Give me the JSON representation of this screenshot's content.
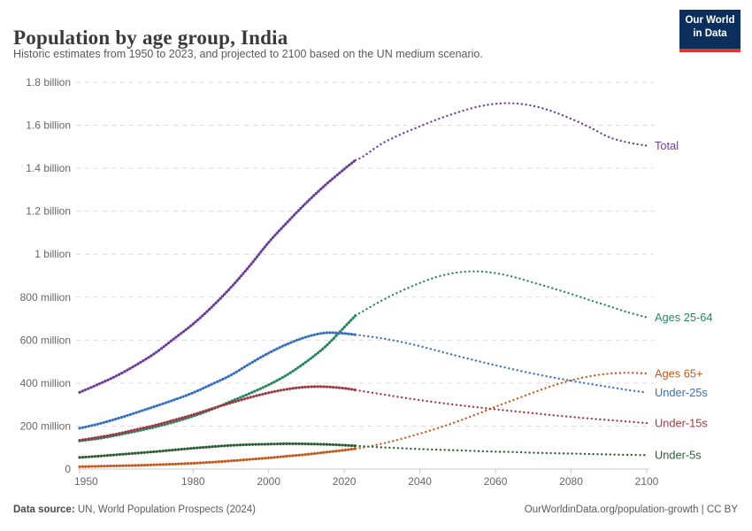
{
  "header": {
    "title": "Population by age group, India",
    "subtitle": "Historic estimates from 1950 to 2023, and projected to 2100 based on the UN medium scenario."
  },
  "logo": {
    "line1": "Our World",
    "line2": "in Data",
    "bg": "#0b2e5c",
    "bar": "#dc3a2f"
  },
  "footer": {
    "source_label": "Data source:",
    "source_text": " UN, World Population Prospects (2024)",
    "link_text": "OurWorldinData.org/population-growth | CC BY"
  },
  "chart_data": {
    "type": "line",
    "title": "Population by age group, India",
    "xlabel": "Year",
    "ylabel": "Population",
    "unit_millions": true,
    "xlim": [
      1950,
      2100
    ],
    "ylim_millions": [
      0,
      1800
    ],
    "grid": true,
    "projection_start_year": 2023,
    "x_ticks": [
      1950,
      1980,
      2000,
      2020,
      2040,
      2060,
      2080,
      2100
    ],
    "y_ticks": [
      {
        "v": 0,
        "label": "0"
      },
      {
        "v": 200,
        "label": "200 million"
      },
      {
        "v": 400,
        "label": "400 million"
      },
      {
        "v": 600,
        "label": "600 million"
      },
      {
        "v": 800,
        "label": "800 million"
      },
      {
        "v": 1000,
        "label": "1 billion"
      },
      {
        "v": 1200,
        "label": "1.2 billion"
      },
      {
        "v": 1400,
        "label": "1.4 billion"
      },
      {
        "v": 1600,
        "label": "1.6 billion"
      },
      {
        "v": 1800,
        "label": "1.8 billion"
      }
    ],
    "colors": {
      "grid": "#dcdcdc",
      "axis": "#c8c8c8",
      "tick_text": "#666666"
    },
    "series": [
      {
        "name": "Total",
        "color": "#6d3e98",
        "historic": [
          [
            1950,
            357
          ],
          [
            1955,
            395
          ],
          [
            1960,
            436
          ],
          [
            1965,
            485
          ],
          [
            1970,
            540
          ],
          [
            1975,
            607
          ],
          [
            1980,
            675
          ],
          [
            1985,
            755
          ],
          [
            1990,
            845
          ],
          [
            1995,
            946
          ],
          [
            2000,
            1055
          ],
          [
            2005,
            1150
          ],
          [
            2010,
            1240
          ],
          [
            2015,
            1322
          ],
          [
            2020,
            1396
          ],
          [
            2023,
            1438
          ]
        ],
        "projected": [
          [
            2023,
            1438
          ],
          [
            2025,
            1455
          ],
          [
            2030,
            1515
          ],
          [
            2035,
            1558
          ],
          [
            2040,
            1595
          ],
          [
            2045,
            1630
          ],
          [
            2050,
            1660
          ],
          [
            2055,
            1685
          ],
          [
            2060,
            1700
          ],
          [
            2065,
            1702
          ],
          [
            2070,
            1690
          ],
          [
            2075,
            1665
          ],
          [
            2080,
            1630
          ],
          [
            2085,
            1590
          ],
          [
            2090,
            1545
          ],
          [
            2095,
            1520
          ],
          [
            2100,
            1505
          ]
        ]
      },
      {
        "name": "Ages 25-64",
        "color": "#2c8465",
        "historic": [
          [
            1950,
            131
          ],
          [
            1955,
            142
          ],
          [
            1960,
            158
          ],
          [
            1965,
            176
          ],
          [
            1970,
            196
          ],
          [
            1975,
            219
          ],
          [
            1980,
            246
          ],
          [
            1985,
            278
          ],
          [
            1990,
            315
          ],
          [
            1995,
            352
          ],
          [
            2000,
            392
          ],
          [
            2005,
            440
          ],
          [
            2010,
            500
          ],
          [
            2015,
            570
          ],
          [
            2020,
            660
          ],
          [
            2023,
            715
          ]
        ],
        "projected": [
          [
            2023,
            715
          ],
          [
            2025,
            735
          ],
          [
            2030,
            785
          ],
          [
            2035,
            828
          ],
          [
            2040,
            866
          ],
          [
            2045,
            897
          ],
          [
            2050,
            915
          ],
          [
            2055,
            920
          ],
          [
            2060,
            912
          ],
          [
            2065,
            893
          ],
          [
            2070,
            868
          ],
          [
            2075,
            842
          ],
          [
            2080,
            815
          ],
          [
            2085,
            786
          ],
          [
            2090,
            758
          ],
          [
            2095,
            730
          ],
          [
            2100,
            706
          ]
        ]
      },
      {
        "name": "Ages 65+",
        "color": "#c45a1d",
        "historic": [
          [
            1950,
            11
          ],
          [
            1955,
            13
          ],
          [
            1960,
            15
          ],
          [
            1965,
            17
          ],
          [
            1970,
            20
          ],
          [
            1975,
            23
          ],
          [
            1980,
            27
          ],
          [
            1985,
            32
          ],
          [
            1990,
            38
          ],
          [
            1995,
            45
          ],
          [
            2000,
            52
          ],
          [
            2005,
            60
          ],
          [
            2010,
            68
          ],
          [
            2015,
            78
          ],
          [
            2020,
            88
          ],
          [
            2023,
            95
          ]
        ],
        "projected": [
          [
            2023,
            95
          ],
          [
            2025,
            100
          ],
          [
            2030,
            118
          ],
          [
            2035,
            140
          ],
          [
            2040,
            165
          ],
          [
            2045,
            192
          ],
          [
            2050,
            222
          ],
          [
            2055,
            255
          ],
          [
            2060,
            290
          ],
          [
            2065,
            323
          ],
          [
            2070,
            356
          ],
          [
            2075,
            387
          ],
          [
            2080,
            413
          ],
          [
            2085,
            432
          ],
          [
            2090,
            444
          ],
          [
            2095,
            448
          ],
          [
            2100,
            445
          ]
        ]
      },
      {
        "name": "Under-25s",
        "color": "#3670bf",
        "historic": [
          [
            1950,
            190
          ],
          [
            1955,
            210
          ],
          [
            1960,
            235
          ],
          [
            1965,
            263
          ],
          [
            1970,
            292
          ],
          [
            1975,
            322
          ],
          [
            1980,
            355
          ],
          [
            1985,
            395
          ],
          [
            1990,
            437
          ],
          [
            1995,
            490
          ],
          [
            2000,
            540
          ],
          [
            2005,
            582
          ],
          [
            2010,
            615
          ],
          [
            2015,
            634
          ],
          [
            2020,
            631
          ],
          [
            2023,
            625
          ]
        ],
        "projected": [
          [
            2023,
            625
          ],
          [
            2025,
            621
          ],
          [
            2030,
            608
          ],
          [
            2035,
            592
          ],
          [
            2040,
            572
          ],
          [
            2045,
            549
          ],
          [
            2050,
            526
          ],
          [
            2055,
            504
          ],
          [
            2060,
            483
          ],
          [
            2065,
            463
          ],
          [
            2070,
            444
          ],
          [
            2075,
            427
          ],
          [
            2080,
            411
          ],
          [
            2085,
            396
          ],
          [
            2090,
            382
          ],
          [
            2095,
            368
          ],
          [
            2100,
            356
          ]
        ]
      },
      {
        "name": "Under-15s",
        "color": "#9c3b42",
        "historic": [
          [
            1950,
            134
          ],
          [
            1955,
            148
          ],
          [
            1960,
            164
          ],
          [
            1965,
            184
          ],
          [
            1970,
            204
          ],
          [
            1975,
            228
          ],
          [
            1980,
            253
          ],
          [
            1985,
            281
          ],
          [
            1990,
            308
          ],
          [
            1995,
            333
          ],
          [
            2000,
            355
          ],
          [
            2005,
            372
          ],
          [
            2010,
            382
          ],
          [
            2015,
            383
          ],
          [
            2020,
            376
          ],
          [
            2023,
            368
          ]
        ],
        "projected": [
          [
            2023,
            368
          ],
          [
            2025,
            362
          ],
          [
            2030,
            348
          ],
          [
            2035,
            334
          ],
          [
            2040,
            321
          ],
          [
            2045,
            309
          ],
          [
            2050,
            298
          ],
          [
            2055,
            288
          ],
          [
            2060,
            278
          ],
          [
            2065,
            269
          ],
          [
            2070,
            260
          ],
          [
            2075,
            251
          ],
          [
            2080,
            243
          ],
          [
            2085,
            235
          ],
          [
            2090,
            228
          ],
          [
            2095,
            221
          ],
          [
            2100,
            214
          ]
        ]
      },
      {
        "name": "Under-5s",
        "color": "#2f5e33",
        "historic": [
          [
            1950,
            54
          ],
          [
            1955,
            60
          ],
          [
            1960,
            67
          ],
          [
            1965,
            74
          ],
          [
            1970,
            81
          ],
          [
            1975,
            89
          ],
          [
            1980,
            97
          ],
          [
            1985,
            104
          ],
          [
            1990,
            110
          ],
          [
            1995,
            114
          ],
          [
            2000,
            116
          ],
          [
            2005,
            118
          ],
          [
            2010,
            117
          ],
          [
            2015,
            115
          ],
          [
            2020,
            111
          ],
          [
            2023,
            108
          ]
        ],
        "projected": [
          [
            2023,
            108
          ],
          [
            2025,
            106
          ],
          [
            2030,
            101
          ],
          [
            2035,
            97
          ],
          [
            2040,
            93
          ],
          [
            2045,
            90
          ],
          [
            2050,
            87
          ],
          [
            2055,
            84
          ],
          [
            2060,
            81
          ],
          [
            2065,
            79
          ],
          [
            2070,
            76
          ],
          [
            2075,
            74
          ],
          [
            2080,
            72
          ],
          [
            2085,
            70
          ],
          [
            2090,
            68
          ],
          [
            2095,
            66
          ],
          [
            2100,
            65
          ]
        ]
      }
    ]
  }
}
